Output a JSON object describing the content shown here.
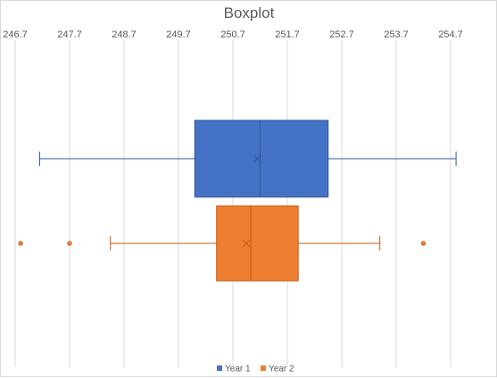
{
  "chart_data": {
    "type": "boxplot",
    "orientation": "horizontal",
    "title": "Boxplot",
    "xlabel": "",
    "ylabel": "",
    "xlim": [
      246.7,
      254.7
    ],
    "x_ticks": [
      246.7,
      247.7,
      248.7,
      249.7,
      250.7,
      251.7,
      252.7,
      253.7,
      254.7
    ],
    "x_tick_labels": [
      "246.7",
      "247.7",
      "248.7",
      "249.7",
      "250.7",
      "251.7",
      "252.7",
      "253.7",
      "254.7"
    ],
    "grid": true,
    "legend_position": "bottom",
    "series": [
      {
        "name": "Year 1",
        "color": "#4472c4",
        "stroke": "#2f5597",
        "whisker_low": 247.15,
        "q1": 250.0,
        "median": 251.2,
        "q3": 252.45,
        "whisker_high": 254.8,
        "mean": 251.15,
        "outliers": []
      },
      {
        "name": "Year 2",
        "color": "#ed7d31",
        "stroke": "#c55a11",
        "whisker_low": 248.45,
        "q1": 250.4,
        "median": 251.03,
        "q3": 251.9,
        "whisker_high": 253.4,
        "mean": 250.95,
        "outliers": [
          246.8,
          247.7,
          254.2
        ]
      }
    ]
  }
}
